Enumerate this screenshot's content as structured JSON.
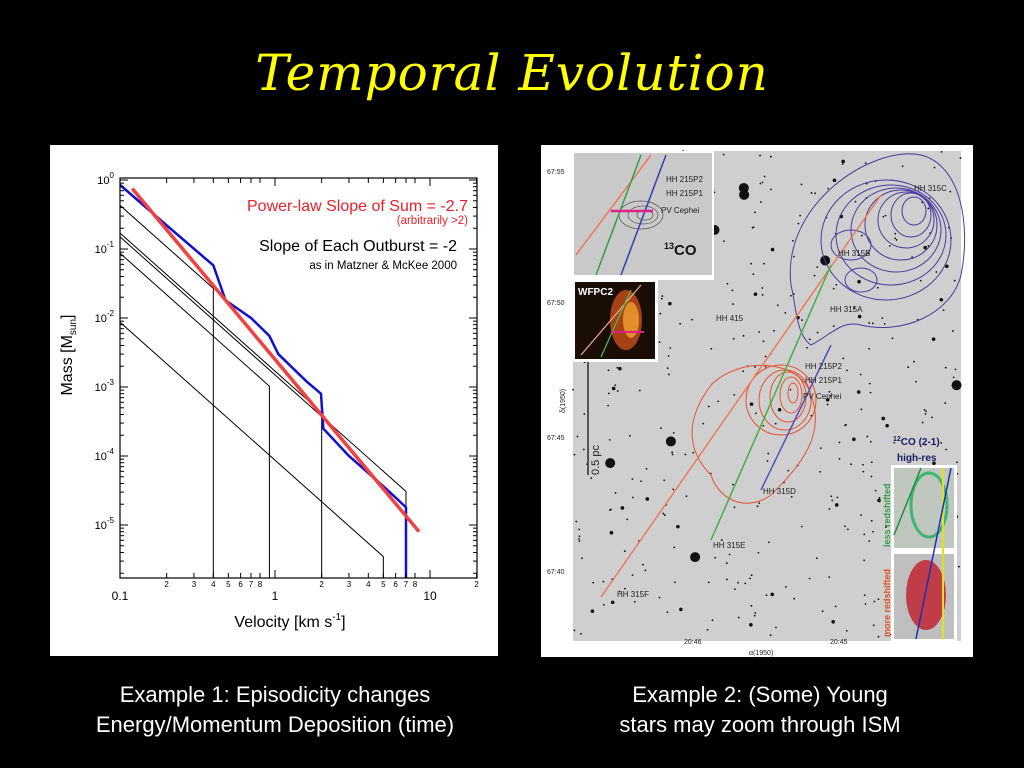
{
  "slide": {
    "title": "Temporal Evolution",
    "caption_left": [
      "Example 1: Episodicity changes",
      "Energy/Momentum Deposition (time)"
    ],
    "caption_right": [
      "Example 2: (Some) Young",
      "stars may zoom through ISM"
    ]
  },
  "chart_data": {
    "type": "line",
    "xlabel": "Velocity [km s",
    "xlabel_sup": "-1",
    "xlabel_end": "]",
    "ylabel": "Mass [M",
    "ylabel_sub": "sun",
    "ylabel_end": "]",
    "xscale": "log",
    "yscale": "log",
    "xlim": [
      0.1,
      20
    ],
    "ylim": [
      1.7e-06,
      1.05
    ],
    "x_major_ticks": [
      {
        "v": 0.1,
        "label": "0.1"
      },
      {
        "v": 1,
        "label": "1"
      },
      {
        "v": 10,
        "label": "10"
      }
    ],
    "x_minor_ticks": [
      {
        "v": 0.2,
        "label": "2"
      },
      {
        "v": 0.3,
        "label": "3"
      },
      {
        "v": 0.4,
        "label": "4"
      },
      {
        "v": 0.5,
        "label": "5"
      },
      {
        "v": 0.6,
        "label": "6"
      },
      {
        "v": 0.7,
        "label": "7"
      },
      {
        "v": 0.8,
        "label": "8"
      },
      {
        "v": 2,
        "label": "2"
      },
      {
        "v": 3,
        "label": "3"
      },
      {
        "v": 4,
        "label": "4"
      },
      {
        "v": 5,
        "label": "5"
      },
      {
        "v": 6,
        "label": "6"
      },
      {
        "v": 7,
        "label": "7"
      },
      {
        "v": 8,
        "label": "8"
      },
      {
        "v": 20,
        "label": "2"
      }
    ],
    "y_major_ticks": [
      {
        "exp": 0,
        "base": "10",
        "sup": "0"
      },
      {
        "exp": -1,
        "base": "10",
        "sup": "-1"
      },
      {
        "exp": -2,
        "base": "10",
        "sup": "-2"
      },
      {
        "exp": -3,
        "base": "10",
        "sup": "-3"
      },
      {
        "exp": -4,
        "base": "10",
        "sup": "-4"
      },
      {
        "exp": -5,
        "base": "10",
        "sup": "-5"
      }
    ],
    "annotations": {
      "fit_label": "Power-law Slope of Sum = -2.7",
      "fit_note": "(arbitrarily >2)",
      "outburst_label": "Slope of Each Outburst = -2",
      "outburst_note": "as in Matzner & McKee 2000"
    },
    "colors": {
      "sum": "#1010d0",
      "fit": "#f04040",
      "outburst": "#000000",
      "fit_text": "#e8202a"
    },
    "outbursts": [
      {
        "amp_at_0.1": 0.43,
        "vmax": 0.4
      },
      {
        "amp_at_0.1": 0.17,
        "vmax": 2.0
      },
      {
        "amp_at_0.1": 0.15,
        "vmax": 7.0
      },
      {
        "amp_at_0.1": 0.087,
        "vmax": 0.92
      },
      {
        "amp_at_0.1": 0.0087,
        "vmax": 5.0
      }
    ],
    "sum_series": {
      "name": "Sum",
      "points": [
        [
          0.1,
          0.85
        ],
        [
          0.2,
          0.22
        ],
        [
          0.4,
          0.058
        ],
        [
          0.48,
          0.018
        ],
        [
          0.7,
          0.01
        ],
        [
          0.92,
          0.0055
        ],
        [
          1.05,
          0.003
        ],
        [
          1.6,
          0.0012
        ],
        [
          1.98,
          0.0008
        ],
        [
          2.05,
          0.00025
        ],
        [
          3,
          0.0001
        ],
        [
          4.5,
          4.5e-05
        ],
        [
          6,
          2.5e-05
        ],
        [
          7,
          1.8e-05
        ],
        [
          7,
          1.7e-06
        ]
      ]
    },
    "fit_series": {
      "name": "Power-law fit",
      "slope": -2.7,
      "points": [
        [
          0.12,
          0.75
        ],
        [
          8.5,
          8e-06
        ]
      ]
    }
  },
  "sky_image": {
    "dec_label": "δ(1950)",
    "ra_label": "α(1950)",
    "dec_ticks": [
      "67:55",
      "67:50",
      "67:45",
      "67:40"
    ],
    "ra_ticks": [
      "20:46",
      "20:45"
    ],
    "scale_bar": "0.5 pc",
    "inset_13co": {
      "label_main": "13",
      "label_co": "CO",
      "objects": [
        "HH 215P2",
        "HH 215P1",
        "PV Cephei"
      ]
    },
    "inset_wfpc2": "WFPC2",
    "inset_12co": {
      "title_sup": "12",
      "title": "CO (2-1)",
      "subtitle": "high-res",
      "less": "less redshifted",
      "more": "more redshifted"
    },
    "objects": {
      "c": "HH 315C",
      "b": "HH 315B",
      "hh415": "HH 415",
      "a": "HH 315A",
      "p2": "HH 215P2",
      "p1": "HH 215P1",
      "pv": "PV Cephei",
      "d": "HH 315D",
      "e": "HH 315E",
      "f": "HH 315F"
    }
  }
}
